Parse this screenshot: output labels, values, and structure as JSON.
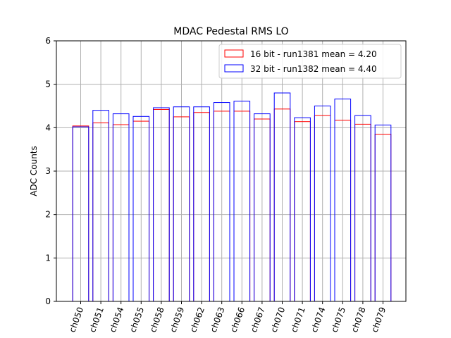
{
  "chart_data": {
    "type": "bar",
    "title": "MDAC Pedestal RMS LO",
    "xlabel": "",
    "ylabel": "ADC Counts",
    "ylim": [
      0,
      6
    ],
    "yticks": [
      0,
      1,
      2,
      3,
      4,
      5,
      6
    ],
    "grid": true,
    "legend_position": "top-right",
    "categories": [
      "ch050",
      "ch051",
      "ch054",
      "ch055",
      "ch058",
      "ch059",
      "ch062",
      "ch063",
      "ch066",
      "ch067",
      "ch070",
      "ch071",
      "ch074",
      "ch075",
      "ch078",
      "ch079"
    ],
    "series": [
      {
        "name": "16 bit - run1381 mean = 4.20",
        "color": "#ff0000",
        "values": [
          4.04,
          4.11,
          4.07,
          4.15,
          4.42,
          4.25,
          4.35,
          4.38,
          4.38,
          4.2,
          4.43,
          4.14,
          4.28,
          4.17,
          4.08,
          3.85
        ]
      },
      {
        "name": "32 bit - run1382 mean = 4.40",
        "color": "#0000ff",
        "values": [
          4.02,
          4.4,
          4.32,
          4.26,
          4.46,
          4.48,
          4.48,
          4.58,
          4.61,
          4.32,
          4.8,
          4.23,
          4.5,
          4.66,
          4.28,
          4.06
        ]
      }
    ]
  }
}
